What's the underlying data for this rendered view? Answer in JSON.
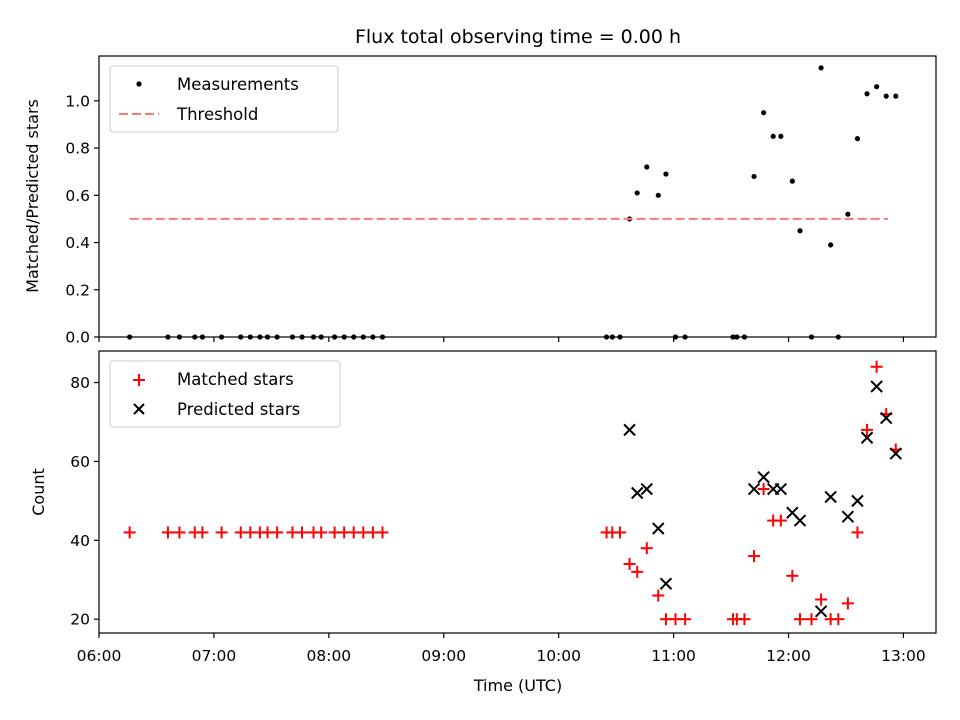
{
  "title": "Flux total observing time = 0.00 h",
  "chart_data": [
    {
      "type": "scatter",
      "ylabel": "Matched/Predicted stars",
      "xlabel": "",
      "xlim": [
        "06:00",
        "13:17"
      ],
      "ylim": [
        0,
        1.19
      ],
      "yticks": [
        0.0,
        0.2,
        0.4,
        0.6,
        0.8,
        1.0
      ],
      "ytick_labels": [
        "0.0",
        "0.2",
        "0.4",
        "0.6",
        "0.8",
        "1.0"
      ],
      "legend_position": "top-left",
      "grid": false,
      "series": [
        {
          "name": "Measurements",
          "marker": "dot",
          "color": "#000000",
          "points": [
            [
              "06:16",
              0
            ],
            [
              "06:36",
              0
            ],
            [
              "06:42",
              0
            ],
            [
              "06:50",
              0
            ],
            [
              "06:54",
              0
            ],
            [
              "07:04",
              0
            ],
            [
              "07:14",
              0
            ],
            [
              "07:19",
              0
            ],
            [
              "07:24",
              0
            ],
            [
              "07:28",
              0
            ],
            [
              "07:33",
              0
            ],
            [
              "07:41",
              0
            ],
            [
              "07:46",
              0
            ],
            [
              "07:52",
              0
            ],
            [
              "07:56",
              0
            ],
            [
              "08:03",
              0
            ],
            [
              "08:08",
              0
            ],
            [
              "08:13",
              0
            ],
            [
              "08:18",
              0
            ],
            [
              "08:23",
              0
            ],
            [
              "08:28",
              0
            ],
            [
              "10:25",
              0
            ],
            [
              "10:28",
              0
            ],
            [
              "10:32",
              0
            ],
            [
              "10:37",
              0.5
            ],
            [
              "10:41",
              0.61
            ],
            [
              "10:46",
              0.72
            ],
            [
              "10:52",
              0.6
            ],
            [
              "10:56",
              0.69
            ],
            [
              "11:01",
              0
            ],
            [
              "11:06",
              0
            ],
            [
              "11:31",
              0
            ],
            [
              "11:33",
              0
            ],
            [
              "11:37",
              0
            ],
            [
              "11:42",
              0.68
            ],
            [
              "11:47",
              0.95
            ],
            [
              "11:52",
              0.85
            ],
            [
              "11:56",
              0.85
            ],
            [
              "12:02",
              0.66
            ],
            [
              "12:06",
              0.45
            ],
            [
              "12:12",
              0
            ],
            [
              "12:17",
              1.14
            ],
            [
              "12:22",
              0.39
            ],
            [
              "12:26",
              0
            ],
            [
              "12:31",
              0.52
            ],
            [
              "12:36",
              0.84
            ],
            [
              "12:41",
              1.03
            ],
            [
              "12:46",
              1.06
            ],
            [
              "12:51",
              1.02
            ],
            [
              "12:56",
              1.02
            ]
          ]
        },
        {
          "name": "Threshold",
          "marker": "dashed-line",
          "color": "#ff7777",
          "points": [
            [
              "06:16",
              0.5
            ],
            [
              "12:52",
              0.5
            ]
          ]
        }
      ]
    },
    {
      "type": "scatter",
      "ylabel": "Count",
      "xlabel": "Time (UTC)",
      "xlim": [
        "06:00",
        "13:17"
      ],
      "ylim": [
        16.5,
        88
      ],
      "yticks": [
        20,
        40,
        60,
        80
      ],
      "ytick_labels": [
        "20",
        "40",
        "60",
        "80"
      ],
      "xticks": [
        "06:00",
        "07:00",
        "08:00",
        "09:00",
        "10:00",
        "11:00",
        "12:00",
        "13:00"
      ],
      "xtick_labels": [
        "06:00",
        "07:00",
        "08:00",
        "09:00",
        "10:00",
        "11:00",
        "12:00",
        "13:00"
      ],
      "legend_position": "top-left",
      "grid": false,
      "series": [
        {
          "name": "Matched stars",
          "marker": "plus",
          "color": "#ff0000",
          "points": [
            [
              "06:16",
              42
            ],
            [
              "06:36",
              42
            ],
            [
              "06:42",
              42
            ],
            [
              "06:50",
              42
            ],
            [
              "06:54",
              42
            ],
            [
              "07:04",
              42
            ],
            [
              "07:14",
              42
            ],
            [
              "07:19",
              42
            ],
            [
              "07:24",
              42
            ],
            [
              "07:28",
              42
            ],
            [
              "07:33",
              42
            ],
            [
              "07:41",
              42
            ],
            [
              "07:46",
              42
            ],
            [
              "07:52",
              42
            ],
            [
              "07:56",
              42
            ],
            [
              "08:03",
              42
            ],
            [
              "08:08",
              42
            ],
            [
              "08:13",
              42
            ],
            [
              "08:18",
              42
            ],
            [
              "08:23",
              42
            ],
            [
              "08:28",
              42
            ],
            [
              "10:25",
              42
            ],
            [
              "10:28",
              42
            ],
            [
              "10:32",
              42
            ],
            [
              "10:37",
              34
            ],
            [
              "10:41",
              32
            ],
            [
              "10:46",
              38
            ],
            [
              "10:52",
              26
            ],
            [
              "10:56",
              20
            ],
            [
              "11:01",
              20
            ],
            [
              "11:06",
              20
            ],
            [
              "11:31",
              20
            ],
            [
              "11:33",
              20
            ],
            [
              "11:37",
              20
            ],
            [
              "11:42",
              36
            ],
            [
              "11:47",
              53
            ],
            [
              "11:52",
              45
            ],
            [
              "11:56",
              45
            ],
            [
              "12:02",
              31
            ],
            [
              "12:06",
              20
            ],
            [
              "12:12",
              20
            ],
            [
              "12:17",
              25
            ],
            [
              "12:22",
              20
            ],
            [
              "12:26",
              20
            ],
            [
              "12:31",
              24
            ],
            [
              "12:36",
              42
            ],
            [
              "12:41",
              68
            ],
            [
              "12:46",
              84
            ],
            [
              "12:51",
              72
            ],
            [
              "12:56",
              63
            ]
          ]
        },
        {
          "name": "Predicted stars",
          "marker": "x",
          "color": "#000000",
          "points": [
            [
              "10:37",
              68
            ],
            [
              "10:41",
              52
            ],
            [
              "10:46",
              53
            ],
            [
              "10:52",
              43
            ],
            [
              "10:56",
              29
            ],
            [
              "11:42",
              53
            ],
            [
              "11:47",
              56
            ],
            [
              "11:52",
              53
            ],
            [
              "11:56",
              53
            ],
            [
              "12:02",
              47
            ],
            [
              "12:06",
              45
            ],
            [
              "12:17",
              22
            ],
            [
              "12:22",
              51
            ],
            [
              "12:31",
              46
            ],
            [
              "12:36",
              50
            ],
            [
              "12:41",
              66
            ],
            [
              "12:46",
              79
            ],
            [
              "12:51",
              71
            ],
            [
              "12:56",
              62
            ]
          ]
        }
      ]
    }
  ]
}
